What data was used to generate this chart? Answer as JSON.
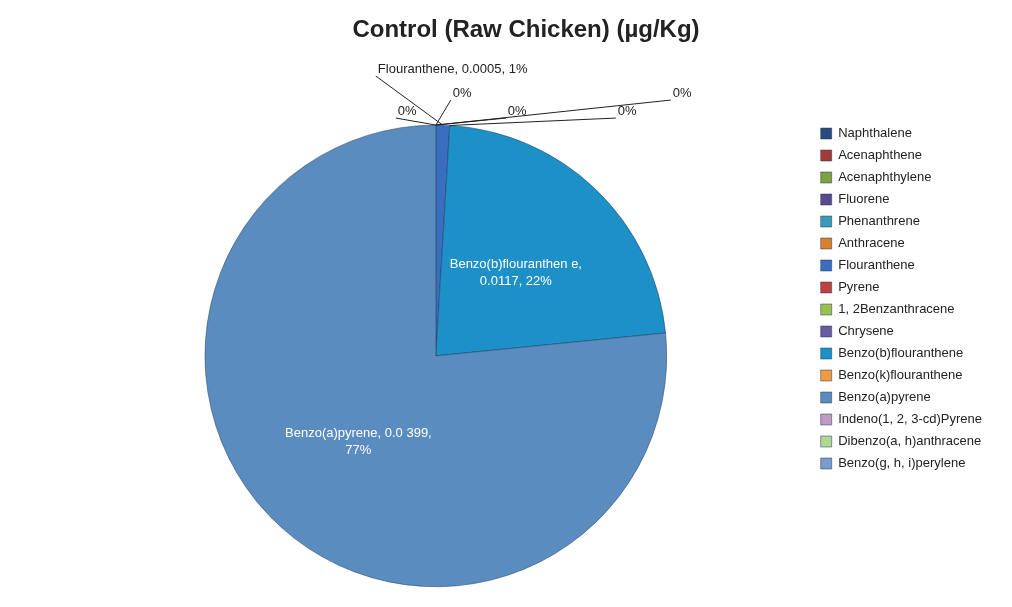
{
  "chart_data": {
    "type": "pie",
    "title": "Control (Raw Chicken) (µg/Kg)",
    "categories": [
      "Naphthalene",
      "Acenaphthene",
      "Acenaphthylene",
      "Fluorene",
      "Phenanthrene",
      "Anthracene",
      "Flouranthene",
      "Pyrene",
      "1, 2Benzanthracene",
      "Chrysene",
      "Benzo(b)flouranthene",
      "Benzo(k)flouranthene",
      "Benzo(a)pyrene",
      "Indeno(1, 2, 3-cd)Pyrene",
      "Dibenzo(a, h)anthracene",
      "Benzo(g, h, i)perylene"
    ],
    "values": [
      0,
      0,
      0,
      0,
      0,
      0,
      0.0005,
      0,
      0,
      0,
      0.0117,
      0,
      0.0399,
      0,
      0,
      0
    ],
    "colors": [
      "#2a4a7f",
      "#a33a3a",
      "#7fa040",
      "#5a4a8a",
      "#3a9ab8",
      "#d88030",
      "#3a6ec0",
      "#c04040",
      "#9ac050",
      "#6a5aa0",
      "#1e90c8",
      "#f09a40",
      "#5b8cc0",
      "#c09ac0",
      "#b0d890",
      "#7a9ad0"
    ],
    "value_labels": [
      "0%",
      "0%",
      null,
      "0%",
      null,
      null,
      "Flouranthene, 0.0005, 1%",
      null,
      "0%",
      null,
      "Benzo(b)flouranthen e, 0.0117, 22%",
      null,
      "Benzo(a)pyrene, 0.0 399, 77%",
      null,
      "0%",
      null
    ],
    "legend": "right"
  }
}
